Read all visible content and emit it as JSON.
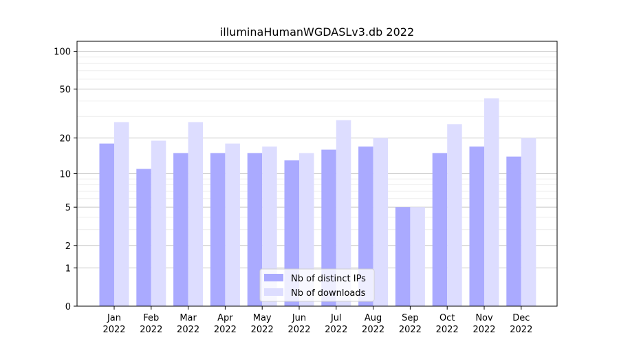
{
  "chart_data": {
    "type": "bar",
    "title": "illuminaHumanWGDASLv3.db 2022",
    "xlabel": "",
    "ylabel": "",
    "y_scale": "log(1+y)",
    "yticks": [
      0,
      1,
      2,
      5,
      10,
      20,
      50,
      100
    ],
    "ytick_labels": [
      "0",
      "1",
      "2",
      "5",
      "10",
      "20",
      "50",
      "100"
    ],
    "ylim": [
      0,
      120
    ],
    "grid": true,
    "legend_position": "bottom-center",
    "categories": [
      "Jan",
      "Feb",
      "Mar",
      "Apr",
      "May",
      "Jun",
      "Jul",
      "Aug",
      "Sep",
      "Oct",
      "Nov",
      "Dec"
    ],
    "category_sublabel": "2022",
    "series": [
      {
        "name": "Nb of distinct IPs",
        "color": "#aaaaff",
        "values": [
          18,
          11,
          15,
          15,
          15,
          13,
          16,
          17,
          5,
          15,
          17,
          14
        ]
      },
      {
        "name": "Nb of downloads",
        "color": "#ddddff",
        "values": [
          27,
          19,
          27,
          18,
          17,
          15,
          28,
          20,
          5,
          26,
          42,
          20
        ]
      }
    ]
  }
}
